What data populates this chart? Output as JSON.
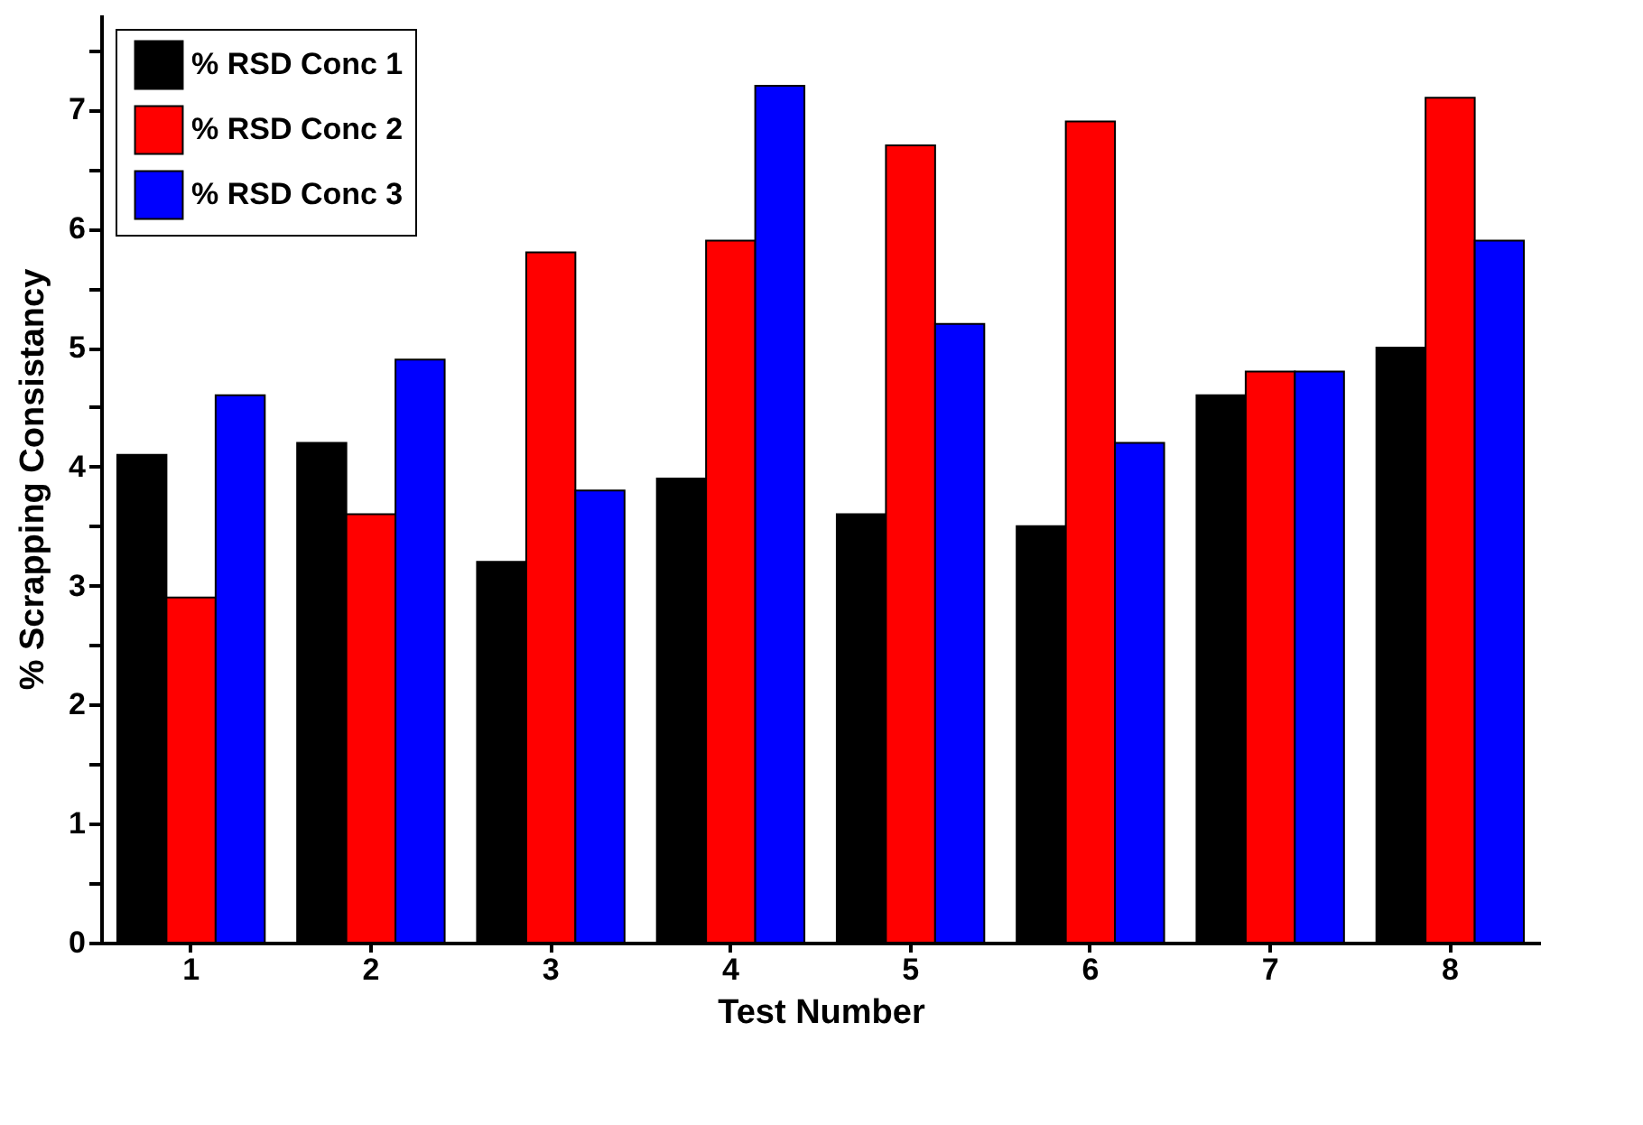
{
  "chart_data": {
    "type": "bar",
    "xlabel": "Test Number",
    "ylabel": "% Scrapping Consistancy",
    "categories": [
      "1",
      "2",
      "3",
      "4",
      "5",
      "6",
      "7",
      "8"
    ],
    "series": [
      {
        "name": "% RSD Conc 1",
        "color": "#000000",
        "values": [
          4.1,
          4.2,
          3.2,
          3.9,
          3.6,
          3.5,
          4.6,
          5.0
        ]
      },
      {
        "name": "% RSD Conc 2",
        "color": "#ff0000",
        "values": [
          2.9,
          3.6,
          5.8,
          5.9,
          6.7,
          6.9,
          4.8,
          7.1
        ]
      },
      {
        "name": "% RSD Conc 3",
        "color": "#0000ff",
        "values": [
          4.6,
          4.9,
          3.8,
          7.2,
          5.2,
          4.2,
          4.8,
          5.9
        ]
      }
    ],
    "ylim": [
      0,
      7.8
    ],
    "yticks": [
      0,
      {
        "value": 0.5,
        "label": null
      },
      1,
      {
        "value": 1.5,
        "label": null
      },
      2,
      {
        "value": 2.5,
        "label": null
      },
      3,
      {
        "value": 3.5,
        "label": null
      },
      4,
      {
        "value": 4.5,
        "label": null
      },
      5,
      {
        "value": 5.5,
        "label": null
      },
      6,
      {
        "value": 6.5,
        "label": null
      },
      7,
      {
        "value": 7.5,
        "label": null
      }
    ],
    "grid": false,
    "legend": "top left"
  }
}
